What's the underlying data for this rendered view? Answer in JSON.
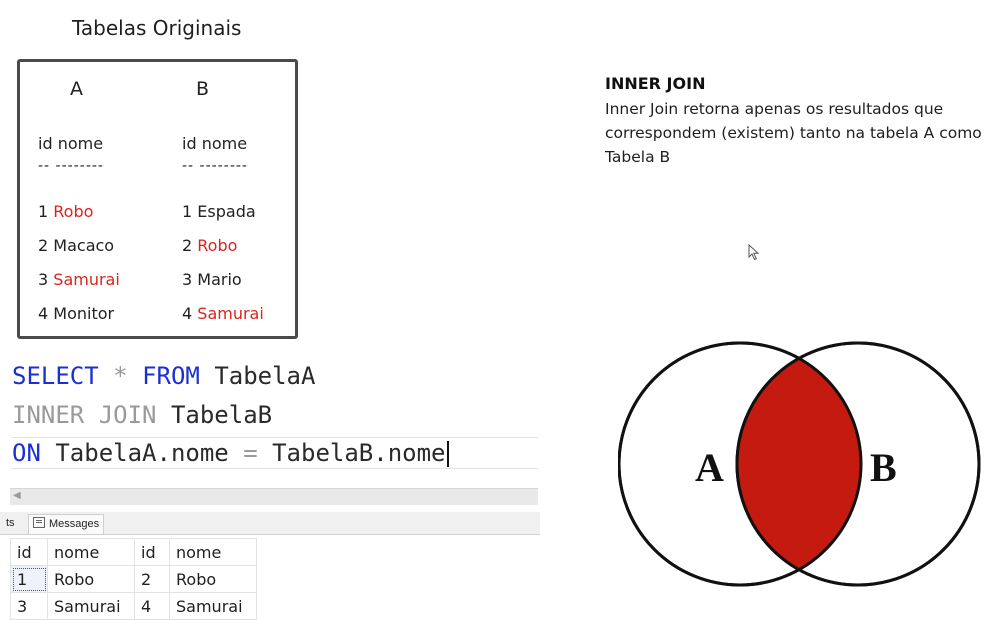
{
  "original_tables": {
    "title": "Tabelas Originais",
    "table_a": {
      "letter": "A",
      "header": "id nome",
      "separator": "-- --------",
      "rows": [
        {
          "id": "1",
          "nome": "Robo",
          "highlight": true
        },
        {
          "id": "2",
          "nome": "Macaco",
          "highlight": false
        },
        {
          "id": "3",
          "nome": "Samurai",
          "highlight": true
        },
        {
          "id": "4",
          "nome": "Monitor",
          "highlight": false
        }
      ]
    },
    "table_b": {
      "letter": "B",
      "header": "id nome",
      "separator": "-- --------",
      "rows": [
        {
          "id": "1",
          "nome": "Espada",
          "highlight": false
        },
        {
          "id": "2",
          "nome": "Robo",
          "highlight": true
        },
        {
          "id": "3",
          "nome": "Mario",
          "highlight": false
        },
        {
          "id": "4",
          "nome": "Samurai",
          "highlight": true
        }
      ]
    }
  },
  "sql": {
    "line1": {
      "kw1": "SELECT",
      "star": "*",
      "kw2": "FROM",
      "table": "TabelaA"
    },
    "line2": {
      "kw": "INNER JOIN",
      "table": "TabelaB"
    },
    "line3": {
      "kw": "ON",
      "left": "TabelaA.nome",
      "op": "=",
      "right": "TabelaB.nome"
    }
  },
  "results_panel": {
    "tabs": {
      "results": "ts",
      "messages": "Messages"
    },
    "scroll_arrow": "◀",
    "columns": [
      "id",
      "nome",
      "id",
      "nome"
    ],
    "rows": [
      [
        "1",
        "Robo",
        "2",
        "Robo"
      ],
      [
        "3",
        "Samurai",
        "4",
        "Samurai"
      ]
    ]
  },
  "explanation": {
    "title": "INNER JOIN",
    "text": "Inner Join retorna apenas os resultados que correspondem (existem) tanto na tabela A como Tabela B"
  },
  "venn": {
    "label_a": "A",
    "label_b": "B",
    "intersection_color": "#c41a0f"
  },
  "colors": {
    "highlight": "#d7261e",
    "sql_keyword": "#1b2fd6",
    "sql_keyword_gray": "#9a9a9a"
  }
}
